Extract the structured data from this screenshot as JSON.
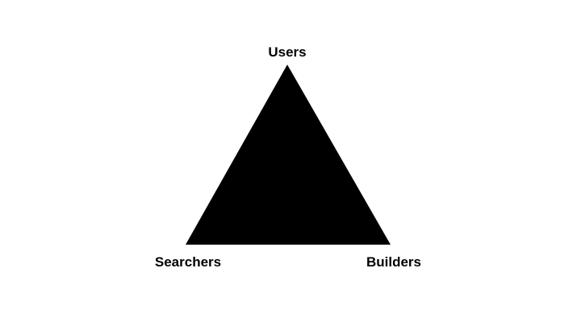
{
  "diagram": {
    "vertices": {
      "top": "Users",
      "bottom_left": "Searchers",
      "bottom_right": "Builders"
    },
    "fill_color": "#000000",
    "background_color": "#ffffff"
  }
}
